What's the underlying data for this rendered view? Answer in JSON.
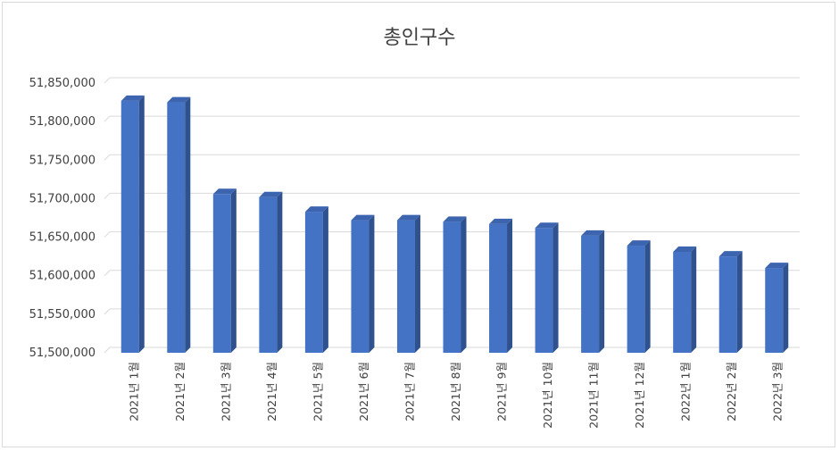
{
  "chart_data": {
    "type": "bar",
    "title": "총인구수",
    "xlabel": "",
    "ylabel": "",
    "ylim": [
      51500000,
      51850000
    ],
    "yticks": [
      51500000,
      51550000,
      51600000,
      51650000,
      51700000,
      51750000,
      51800000,
      51850000
    ],
    "ytick_labels": [
      "51,500,000",
      "51,550,000",
      "51,600,000",
      "51,650,000",
      "51,700,000",
      "51,750,000",
      "51,800,000",
      "51,850,000"
    ],
    "grid": true,
    "legend": "none",
    "bar_style": "3d-column",
    "colors": {
      "bar_front": "#4472c4",
      "bar_side": "#2f528f",
      "bar_top": "#3d64ae",
      "grid": "#d9d9d9",
      "text": "#404040"
    },
    "categories": [
      "2021년 1월",
      "2021년 2월",
      "2021년 3월",
      "2021년 4월",
      "2021년 5월",
      "2021년 6월",
      "2021년 7월",
      "2021년 8월",
      "2021년 9월",
      "2021년 10월",
      "2021년 11월",
      "2021년 12월",
      "2022년 1월",
      "2022년 2월",
      "2022년 3월"
    ],
    "values": [
      51827000,
      51825000,
      51706000,
      51702000,
      51683000,
      51672000,
      51672000,
      51670000,
      51667000,
      51662000,
      51652000,
      51639000,
      51631000,
      51625000,
      51610000
    ]
  }
}
